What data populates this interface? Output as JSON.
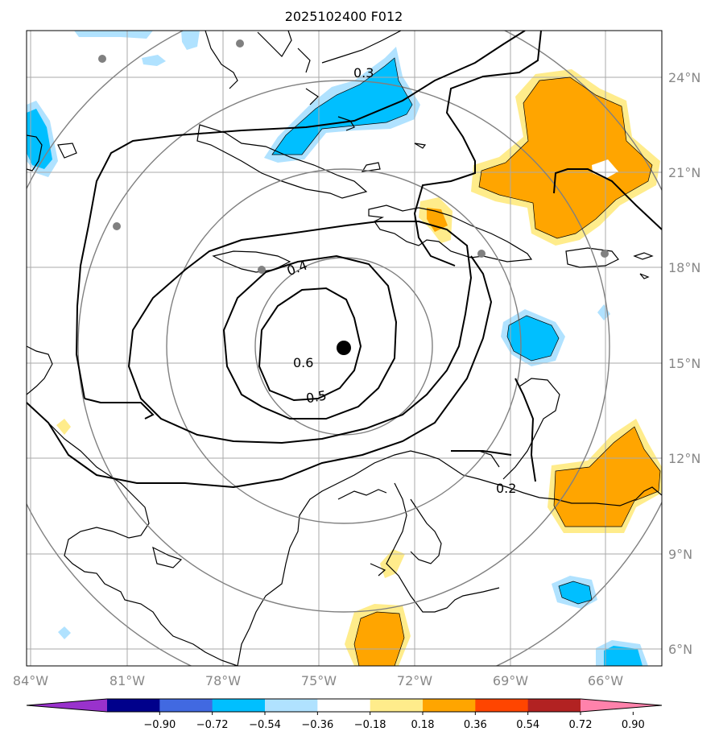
{
  "title": "2025102400 F012",
  "x_ticks": [
    "84°W",
    "81°W",
    "78°W",
    "75°W",
    "72°W",
    "69°W",
    "66°W"
  ],
  "y_ticks": [
    "24°N",
    "21°N",
    "18°N",
    "15°N",
    "12°N",
    "9°N",
    "6°N"
  ],
  "contour_labels": [
    "0.3",
    "0.4",
    "0.6",
    "0.5",
    "0.2"
  ],
  "colorbar": {
    "ticks": [
      "−0.90",
      "−0.72",
      "−0.54",
      "−0.36",
      "−0.18",
      "0.18",
      "0.36",
      "0.54",
      "0.72",
      "0.90"
    ],
    "colors": [
      "#9932cc",
      "#00008b",
      "#4169e1",
      "#00bfff",
      "#b0e2ff",
      "#ffffff",
      "#ffec8b",
      "#ffa500",
      "#ff4500",
      "#b22222",
      "#ff82ab"
    ]
  },
  "colors": {
    "orange": "#ffa500",
    "light_yellow": "#ffec8b",
    "deep_sky_blue": "#00bfff",
    "light_sky_blue": "#b0e2ff",
    "gridline": "#aaaaaa",
    "range_ring": "#808080",
    "center_marker": "#000000",
    "city_marker": "#808080"
  }
}
